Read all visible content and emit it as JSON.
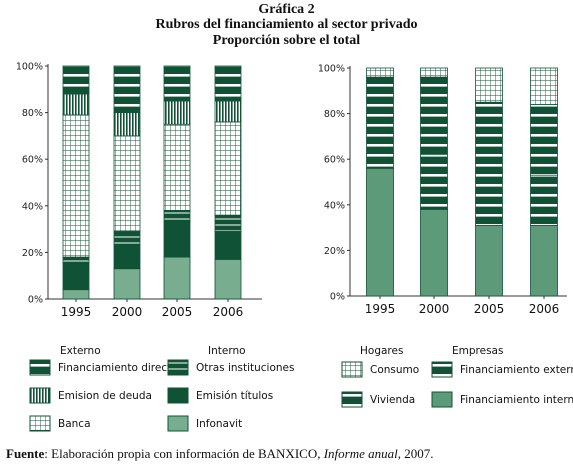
{
  "header": {
    "label": "Gráfica 2",
    "title": "Rubros del financiamiento al sector privado",
    "subtitle": "Proporción sobre el total"
  },
  "source": {
    "label": "Fuente",
    "text": ": Elaboración propia con información de BANXICO, ",
    "publication": "Informe anual",
    "year": ", 2007."
  },
  "legend_left": {
    "group_externo": "Externo",
    "group_interno": "Interno"
  },
  "legend_right": {
    "group_hogares": "Hogares",
    "group_empresas": "Empresas"
  },
  "colors": {
    "dark_green": "#0f5236",
    "medium_green": "#5c9a7a",
    "light_green": "#79ad8f",
    "white": "#ffffff"
  },
  "chart_data": [
    {
      "type": "bar",
      "stacked": true,
      "categories": [
        "1995",
        "2000",
        "2005",
        "2006"
      ],
      "ylim": [
        0,
        100
      ],
      "yticks": [
        "0%",
        "20%",
        "40%",
        "60%",
        "80%",
        "100%"
      ],
      "series": [
        {
          "name": "Infonavit",
          "pattern": "solid-light",
          "values": [
            4,
            13,
            18,
            17
          ]
        },
        {
          "name": "Emisión títulos",
          "pattern": "solid-dark",
          "values": [
            11,
            10,
            15,
            12
          ]
        },
        {
          "name": "Otras instituciones",
          "pattern": "dark-thin-lines",
          "values": [
            3,
            6,
            5,
            7
          ]
        },
        {
          "name": "Banca",
          "pattern": "grid",
          "values": [
            61,
            41,
            37,
            40
          ]
        },
        {
          "name": "Emision de deuda",
          "pattern": "vertical-lines",
          "values": [
            9,
            10,
            10,
            9
          ]
        },
        {
          "name": "Financiamiento directo",
          "pattern": "dark-white-bands",
          "values": [
            12,
            20,
            15,
            15
          ]
        }
      ]
    },
    {
      "type": "bar",
      "stacked": true,
      "categories": [
        "1995",
        "2000",
        "2005",
        "2006"
      ],
      "ylim": [
        0,
        100
      ],
      "yticks": [
        "0%",
        "20%",
        "40%",
        "60%",
        "80%",
        "100%"
      ],
      "series": [
        {
          "name": "Financiamiento interno",
          "pattern": "solid-medium",
          "values": [
            56,
            38,
            31,
            31
          ]
        },
        {
          "name": "Vivienda",
          "pattern": "dark-white-bands",
          "values": [
            22,
            24,
            23,
            22
          ]
        },
        {
          "name": "Financiamiento externo",
          "pattern": "dark-white-bands",
          "values": [
            18,
            34,
            31,
            31
          ]
        },
        {
          "name": "Consumo",
          "pattern": "grid",
          "values": [
            4,
            4,
            15,
            16
          ]
        }
      ]
    }
  ]
}
